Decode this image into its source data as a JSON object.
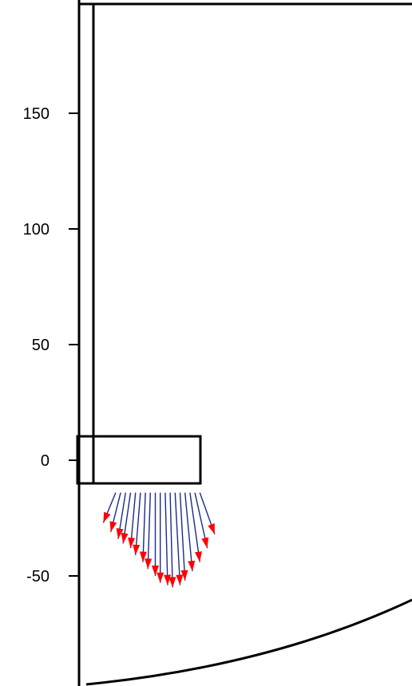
{
  "chart_data": {
    "type": "diagram",
    "y_axis": {
      "ticks": [
        {
          "value": 150,
          "label": "150"
        },
        {
          "value": 100,
          "label": "100"
        },
        {
          "value": 50,
          "label": "50"
        },
        {
          "value": 0,
          "label": "0"
        },
        {
          "value": -50,
          "label": "-50"
        }
      ],
      "visible_range": [
        -96,
        196
      ]
    },
    "colors": {
      "outline": "#000000",
      "vector_shaft": "#1b2a8c",
      "vector_head": "#ff0000",
      "background": "#ffffff"
    },
    "vectors": [
      {
        "x": -0.5,
        "y": -14,
        "dx": -2.5,
        "dy": -13
      },
      {
        "x": 0.5,
        "y": -14,
        "dx": -2.0,
        "dy": -17
      },
      {
        "x": 1.5,
        "y": -14,
        "dx": -1.5,
        "dy": -20
      },
      {
        "x": 2.5,
        "y": -14,
        "dx": -1.5,
        "dy": -22
      },
      {
        "x": 3.5,
        "y": -14,
        "dx": -1.0,
        "dy": -24
      },
      {
        "x": 4.5,
        "y": -14,
        "dx": -1.0,
        "dy": -27
      },
      {
        "x": 5.5,
        "y": -14,
        "dx": -0.5,
        "dy": -30
      },
      {
        "x": 6.5,
        "y": -14,
        "dx": -0.5,
        "dy": -33
      },
      {
        "x": 7.5,
        "y": -14,
        "dx": 0.0,
        "dy": -36
      },
      {
        "x": 8.5,
        "y": -14,
        "dx": 0.0,
        "dy": -39
      },
      {
        "x": 9.5,
        "y": -14,
        "dx": 0.5,
        "dy": -40
      },
      {
        "x": 10.5,
        "y": -14,
        "dx": 0.5,
        "dy": -41
      },
      {
        "x": 11.5,
        "y": -14,
        "dx": 1.0,
        "dy": -40
      },
      {
        "x": 12.5,
        "y": -14,
        "dx": 1.0,
        "dy": -38
      },
      {
        "x": 13.5,
        "y": -14,
        "dx": 1.5,
        "dy": -34
      },
      {
        "x": 14.5,
        "y": -14,
        "dx": 2.0,
        "dy": -30
      },
      {
        "x": 15.5,
        "y": -14,
        "dx": 2.5,
        "dy": -24
      },
      {
        "x": 16.5,
        "y": -14,
        "dx": 3.0,
        "dy": -18
      }
    ]
  }
}
